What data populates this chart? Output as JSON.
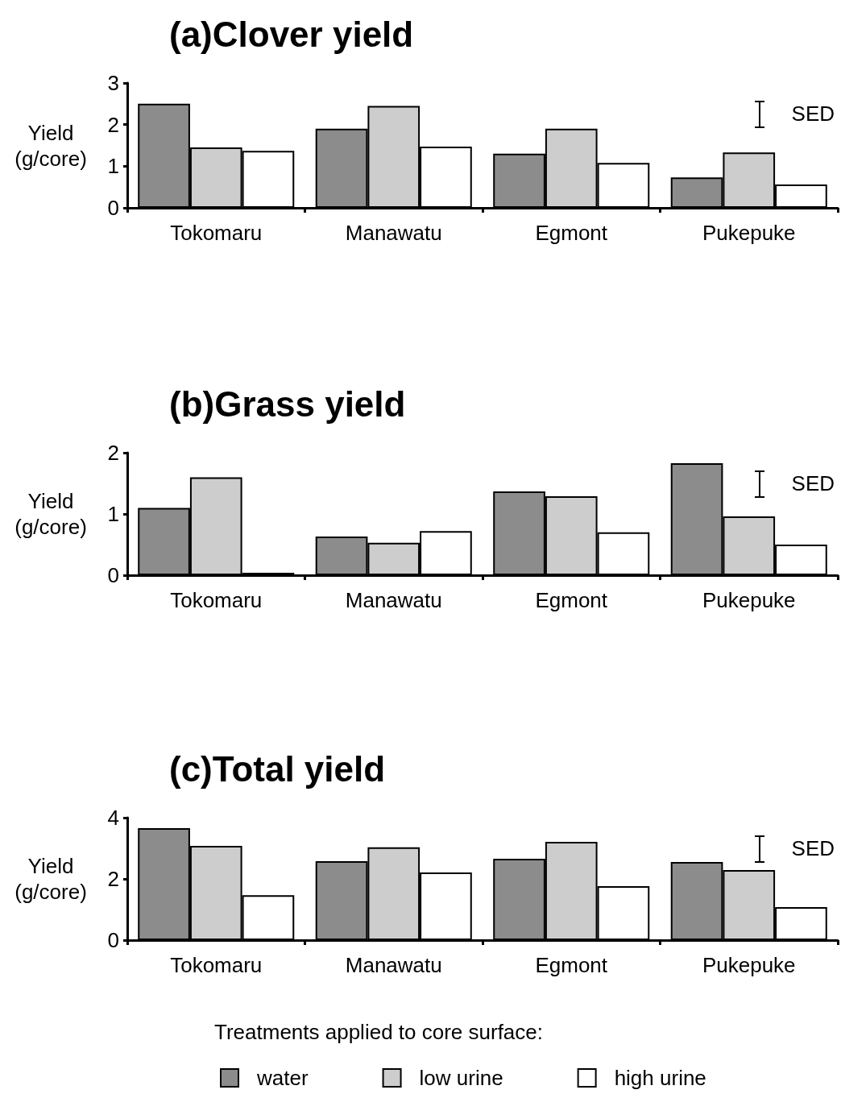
{
  "chart_data": [
    {
      "type": "bar",
      "title": "(a)Clover yield",
      "ylabel": "Yield (g/core)",
      "categories": [
        "Tokomaru",
        "Manawatu",
        "Egmont",
        "Pukepuke"
      ],
      "ylim": [
        0,
        3
      ],
      "yticks": [
        0,
        1,
        2,
        3
      ],
      "grid": false,
      "legend": false,
      "annotations": [
        "SED"
      ],
      "series": [
        {
          "color": "#8c8c8c",
          "values": [
            2.5,
            1.9,
            1.3,
            0.73
          ]
        },
        {
          "color": "#cdcdcd",
          "values": [
            1.45,
            2.45,
            1.9,
            1.33
          ]
        },
        {
          "color": "#ffffff",
          "values": [
            1.37,
            1.47,
            1.08,
            0.56
          ]
        }
      ]
    },
    {
      "type": "bar",
      "title": "(b)Grass yield",
      "ylabel": "Yield (g/core)",
      "categories": [
        "Tokomaru",
        "Manawatu",
        "Egmont",
        "Pukepuke"
      ],
      "ylim": [
        0,
        2
      ],
      "yticks": [
        0,
        1,
        2
      ],
      "grid": false,
      "legend": false,
      "annotations": [
        "SED"
      ],
      "series": [
        {
          "color": "#8c8c8c",
          "values": [
            1.1,
            0.63,
            1.37,
            1.83
          ]
        },
        {
          "color": "#cdcdcd",
          "values": [
            1.6,
            0.53,
            1.29,
            0.96
          ]
        },
        {
          "color": "#ffffff",
          "values": [
            0.04,
            0.72,
            0.7,
            0.5
          ]
        }
      ]
    },
    {
      "type": "bar",
      "title": "(c)Total yield",
      "ylabel": "Yield (g/core)",
      "categories": [
        "Tokomaru",
        "Manawatu",
        "Egmont",
        "Pukepuke"
      ],
      "ylim": [
        0,
        4
      ],
      "yticks": [
        0,
        2,
        4
      ],
      "grid": false,
      "legend": "bottom",
      "legend_title": "Treatments applied to core surface:",
      "annotations": [
        "SED"
      ],
      "series": [
        {
          "name": "water",
          "color": "#8c8c8c",
          "values": [
            3.66,
            2.58,
            2.66,
            2.55
          ]
        },
        {
          "name": "low urine",
          "color": "#cdcdcd",
          "values": [
            3.08,
            3.03,
            3.21,
            2.29
          ]
        },
        {
          "name": "high urine",
          "color": "#ffffff",
          "values": [
            1.47,
            2.21,
            1.76,
            1.08
          ]
        }
      ]
    }
  ]
}
